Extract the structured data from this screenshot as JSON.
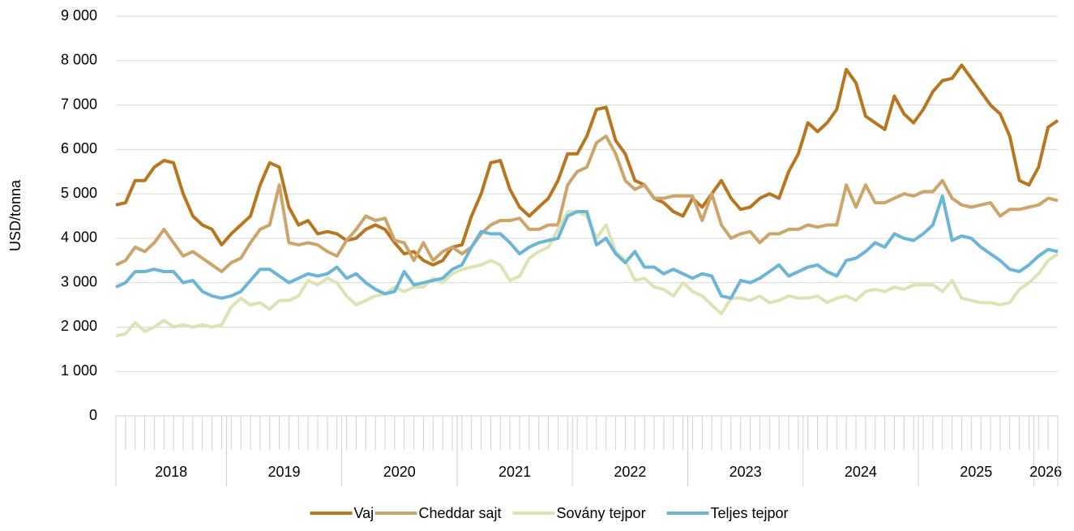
{
  "chart_data": {
    "type": "line",
    "ylabel": "USD/tonna",
    "categories": [
      "2018",
      "2018",
      "2018",
      "2018",
      "2018",
      "2018",
      "2018",
      "2018",
      "2018",
      "2018",
      "2018",
      "2018",
      "2019",
      "2019",
      "2019",
      "2019",
      "2019",
      "2019",
      "2019",
      "2019",
      "2019",
      "2019",
      "2019",
      "2019",
      "2020",
      "2020",
      "2020",
      "2020",
      "2020",
      "2020",
      "2020",
      "2020",
      "2020",
      "2020",
      "2020",
      "2020",
      "2021",
      "2021",
      "2021",
      "2021",
      "2021",
      "2021",
      "2021",
      "2021",
      "2021",
      "2021",
      "2021",
      "2021",
      "2022",
      "2022",
      "2022",
      "2022",
      "2022",
      "2022",
      "2022",
      "2022",
      "2022",
      "2022",
      "2022",
      "2022",
      "2023",
      "2023",
      "2023",
      "2023",
      "2023",
      "2023",
      "2023",
      "2023",
      "2023",
      "2023",
      "2023",
      "2023",
      "2024",
      "2024",
      "2024",
      "2024",
      "2024",
      "2024",
      "2024",
      "2024",
      "2024",
      "2024",
      "2024",
      "2024",
      "2025",
      "2025",
      "2025",
      "2025",
      "2025",
      "2025",
      "2025",
      "2025",
      "2025",
      "2025",
      "2025",
      "2025",
      "2026",
      "2026",
      "2026"
    ],
    "series": [
      {
        "name": "Vaj",
        "color": "#b8761f",
        "values": [
          4750,
          4800,
          5300,
          5300,
          5600,
          5750,
          5700,
          5000,
          4500,
          4300,
          4200,
          3850,
          4100,
          4300,
          4500,
          5200,
          5700,
          5600,
          4700,
          4300,
          4400,
          4100,
          4150,
          4100,
          3950,
          4000,
          4200,
          4300,
          4200,
          3900,
          3650,
          3700,
          3500,
          3400,
          3500,
          3800,
          3850,
          4500,
          5000,
          5700,
          5750,
          5100,
          4700,
          4500,
          4700,
          4900,
          5300,
          5900,
          5900,
          6300,
          6900,
          6950,
          6200,
          5900,
          5300,
          5200,
          4900,
          4800,
          4600,
          4500,
          4900,
          4700,
          5000,
          5300,
          4900,
          4650,
          4700,
          4900,
          5000,
          4900,
          5500,
          5900,
          6600,
          6400,
          6600,
          6900,
          7800,
          7500,
          6750,
          6600,
          6450,
          7200,
          6800,
          6600,
          6900,
          7300,
          7550,
          7600,
          7900,
          7600,
          7300,
          7000,
          6800,
          6300,
          5300,
          5200,
          5600,
          6500,
          6650
        ]
      },
      {
        "name": "Cheddar sajt",
        "color": "#cda56a",
        "values": [
          3400,
          3500,
          3800,
          3700,
          3900,
          4200,
          3900,
          3600,
          3700,
          3550,
          3400,
          3250,
          3450,
          3550,
          3900,
          4200,
          4300,
          5200,
          3900,
          3850,
          3900,
          3850,
          3700,
          3600,
          3950,
          4200,
          4500,
          4400,
          4450,
          3950,
          3900,
          3500,
          3900,
          3500,
          3700,
          3800,
          3650,
          3800,
          4100,
          4300,
          4400,
          4400,
          4450,
          4200,
          4200,
          4300,
          4300,
          5200,
          5500,
          5600,
          6150,
          6300,
          5900,
          5300,
          5100,
          5200,
          4900,
          4900,
          4950,
          4950,
          4950,
          4400,
          5000,
          4300,
          4000,
          4100,
          4150,
          3900,
          4100,
          4100,
          4200,
          4200,
          4300,
          4250,
          4300,
          4300,
          5200,
          4700,
          5200,
          4800,
          4800,
          4900,
          5000,
          4950,
          5050,
          5050,
          5300,
          4900,
          4750,
          4700,
          4750,
          4800,
          4500,
          4650,
          4650,
          4700,
          4750,
          4900,
          4850
        ]
      },
      {
        "name": "Sovány tejpor",
        "color": "#dde4b4",
        "values": [
          1800,
          1850,
          2100,
          1900,
          2000,
          2150,
          2000,
          2050,
          2000,
          2050,
          2000,
          2050,
          2450,
          2650,
          2500,
          2550,
          2400,
          2600,
          2600,
          2700,
          3050,
          2950,
          3100,
          3000,
          2700,
          2500,
          2600,
          2700,
          2750,
          2900,
          2800,
          2900,
          2900,
          3100,
          3000,
          3200,
          3300,
          3350,
          3400,
          3500,
          3400,
          3050,
          3150,
          3550,
          3700,
          3800,
          4200,
          4600,
          4600,
          4500,
          4000,
          4300,
          3700,
          3500,
          3050,
          3100,
          2900,
          2850,
          2700,
          3000,
          2800,
          2700,
          2500,
          2300,
          2650,
          2650,
          2600,
          2700,
          2550,
          2600,
          2700,
          2650,
          2650,
          2700,
          2550,
          2650,
          2700,
          2600,
          2800,
          2850,
          2800,
          2900,
          2850,
          2950,
          2950,
          2950,
          2800,
          3050,
          2650,
          2600,
          2550,
          2550,
          2500,
          2550,
          2850,
          3000,
          3200,
          3500,
          3650
        ]
      },
      {
        "name": "Teljes tejpor",
        "color": "#6bb5d8",
        "values": [
          2900,
          3000,
          3250,
          3250,
          3300,
          3250,
          3250,
          3000,
          3050,
          2800,
          2700,
          2650,
          2700,
          2800,
          3050,
          3300,
          3300,
          3150,
          3000,
          3100,
          3200,
          3150,
          3200,
          3350,
          3100,
          3200,
          3000,
          2850,
          2750,
          2800,
          3250,
          2950,
          3000,
          3050,
          3100,
          3300,
          3400,
          3800,
          4150,
          4100,
          4100,
          3900,
          3650,
          3800,
          3900,
          3950,
          4000,
          4500,
          4600,
          4600,
          3850,
          4000,
          3650,
          3450,
          3700,
          3350,
          3350,
          3200,
          3300,
          3200,
          3100,
          3200,
          3150,
          2700,
          2650,
          3050,
          3000,
          3100,
          3250,
          3400,
          3150,
          3250,
          3350,
          3400,
          3250,
          3150,
          3500,
          3550,
          3700,
          3900,
          3800,
          4100,
          4000,
          3950,
          4100,
          4300,
          4950,
          3950,
          4050,
          4000,
          3800,
          3650,
          3500,
          3300,
          3250,
          3400,
          3600,
          3750,
          3700
        ]
      }
    ],
    "ylim": [
      0,
      9000
    ],
    "yticks": [
      0,
      {
        "value": 1000,
        "label": "1 000"
      },
      {
        "value": 2000,
        "label": "2 000"
      },
      {
        "value": 3000,
        "label": "3 000"
      },
      {
        "value": 4000,
        "label": "4 000"
      },
      {
        "value": 5000,
        "label": "5 000"
      },
      {
        "value": 6000,
        "label": "6 000"
      },
      {
        "value": 7000,
        "label": "7 000"
      },
      {
        "value": 8000,
        "label": "8 000"
      },
      {
        "value": 9000,
        "label": "9 000"
      }
    ],
    "grid": true,
    "legend": "bottom"
  }
}
